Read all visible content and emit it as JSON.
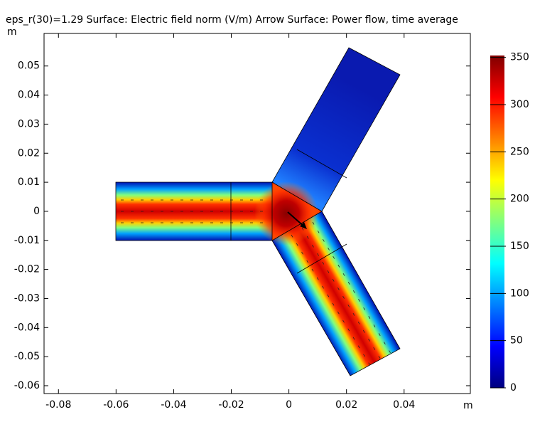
{
  "chart_data": {
    "type": "surface",
    "title": "eps_r(30)=1.29   Surface: Electric field norm (V/m)  Arrow Surface: Power flow, time average",
    "x_label": "m",
    "y_label": "m",
    "xlim": [
      -0.085,
      0.063
    ],
    "xticks": [
      -0.08,
      -0.06,
      -0.04,
      -0.02,
      0,
      0.02,
      0.04
    ],
    "ylim": [
      -0.0627,
      0.0612
    ],
    "yticks": [
      -0.06,
      -0.05,
      -0.04,
      -0.03,
      -0.02,
      -0.01,
      0,
      0.01,
      0.02,
      0.03,
      0.04,
      0.05
    ],
    "colorbar": {
      "lim": [
        0,
        352
      ],
      "ticks": [
        0,
        50,
        100,
        150,
        200,
        250,
        300,
        350
      ],
      "colormap": [
        "#00007f",
        "#0000ff",
        "#0080ff",
        "#00ffff",
        "#80ff80",
        "#ffff00",
        "#ff8000",
        "#ff0000",
        "#7f0000"
      ]
    }
  }
}
